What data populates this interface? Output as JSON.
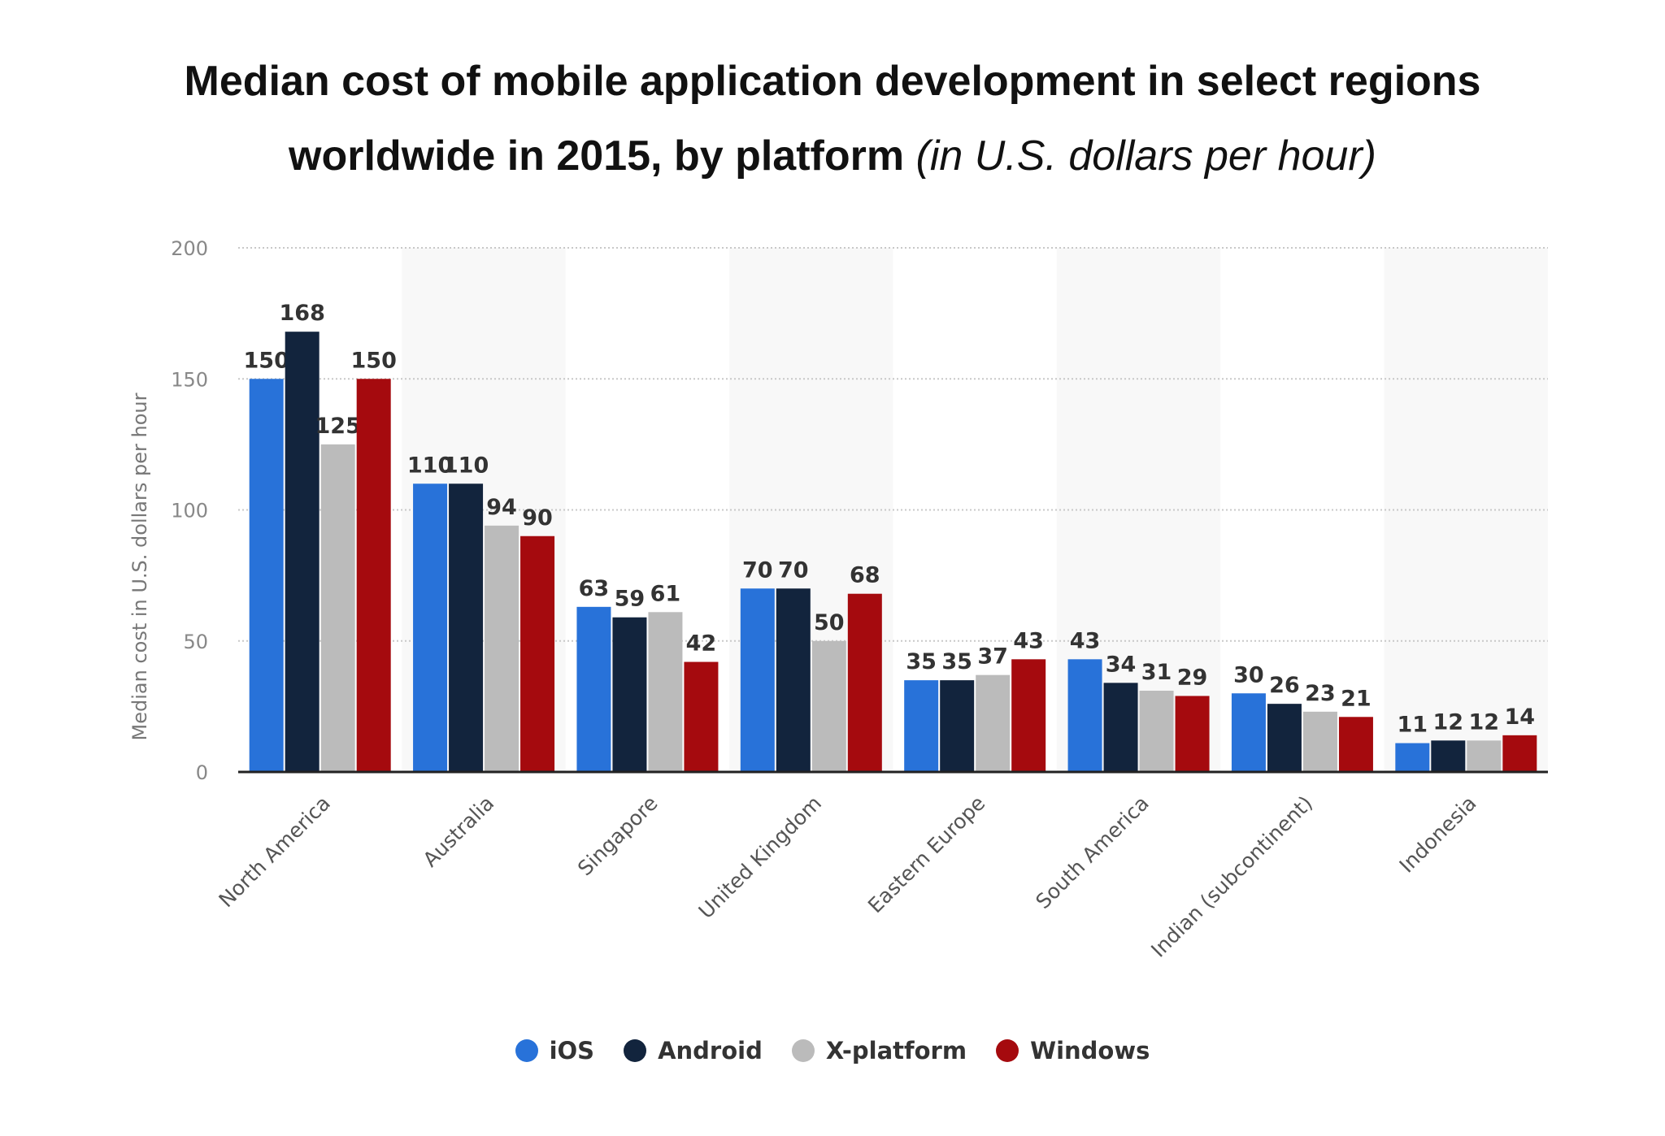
{
  "chart_data": {
    "type": "bar",
    "title": "Median cost of mobile application development in select regions worldwide in 2015, by platform",
    "subtitle": "(in U.S. dollars per hour)",
    "xlabel": "",
    "ylabel": "Median cost in U.S. dollars per hour",
    "ylim": [
      0,
      200
    ],
    "yticks": [
      0,
      50,
      100,
      150,
      200
    ],
    "grid": true,
    "legend_position": "bottom",
    "categories": [
      "North America",
      "Australia",
      "Singapore",
      "United Kingdom",
      "Eastern Europe",
      "South America",
      "Indian (subcontinent)",
      "Indonesia"
    ],
    "series": [
      {
        "name": "iOS",
        "color": "#2872d9",
        "values": [
          150,
          110,
          63,
          70,
          35,
          43,
          30,
          11
        ]
      },
      {
        "name": "Android",
        "color": "#12243d",
        "values": [
          168,
          110,
          59,
          70,
          35,
          34,
          26,
          12
        ]
      },
      {
        "name": "X-platform",
        "color": "#bbbbbb",
        "values": [
          125,
          94,
          61,
          50,
          37,
          31,
          23,
          12
        ]
      },
      {
        "name": "Windows",
        "color": "#a50a0e",
        "values": [
          150,
          90,
          42,
          68,
          43,
          29,
          21,
          14
        ]
      }
    ]
  }
}
